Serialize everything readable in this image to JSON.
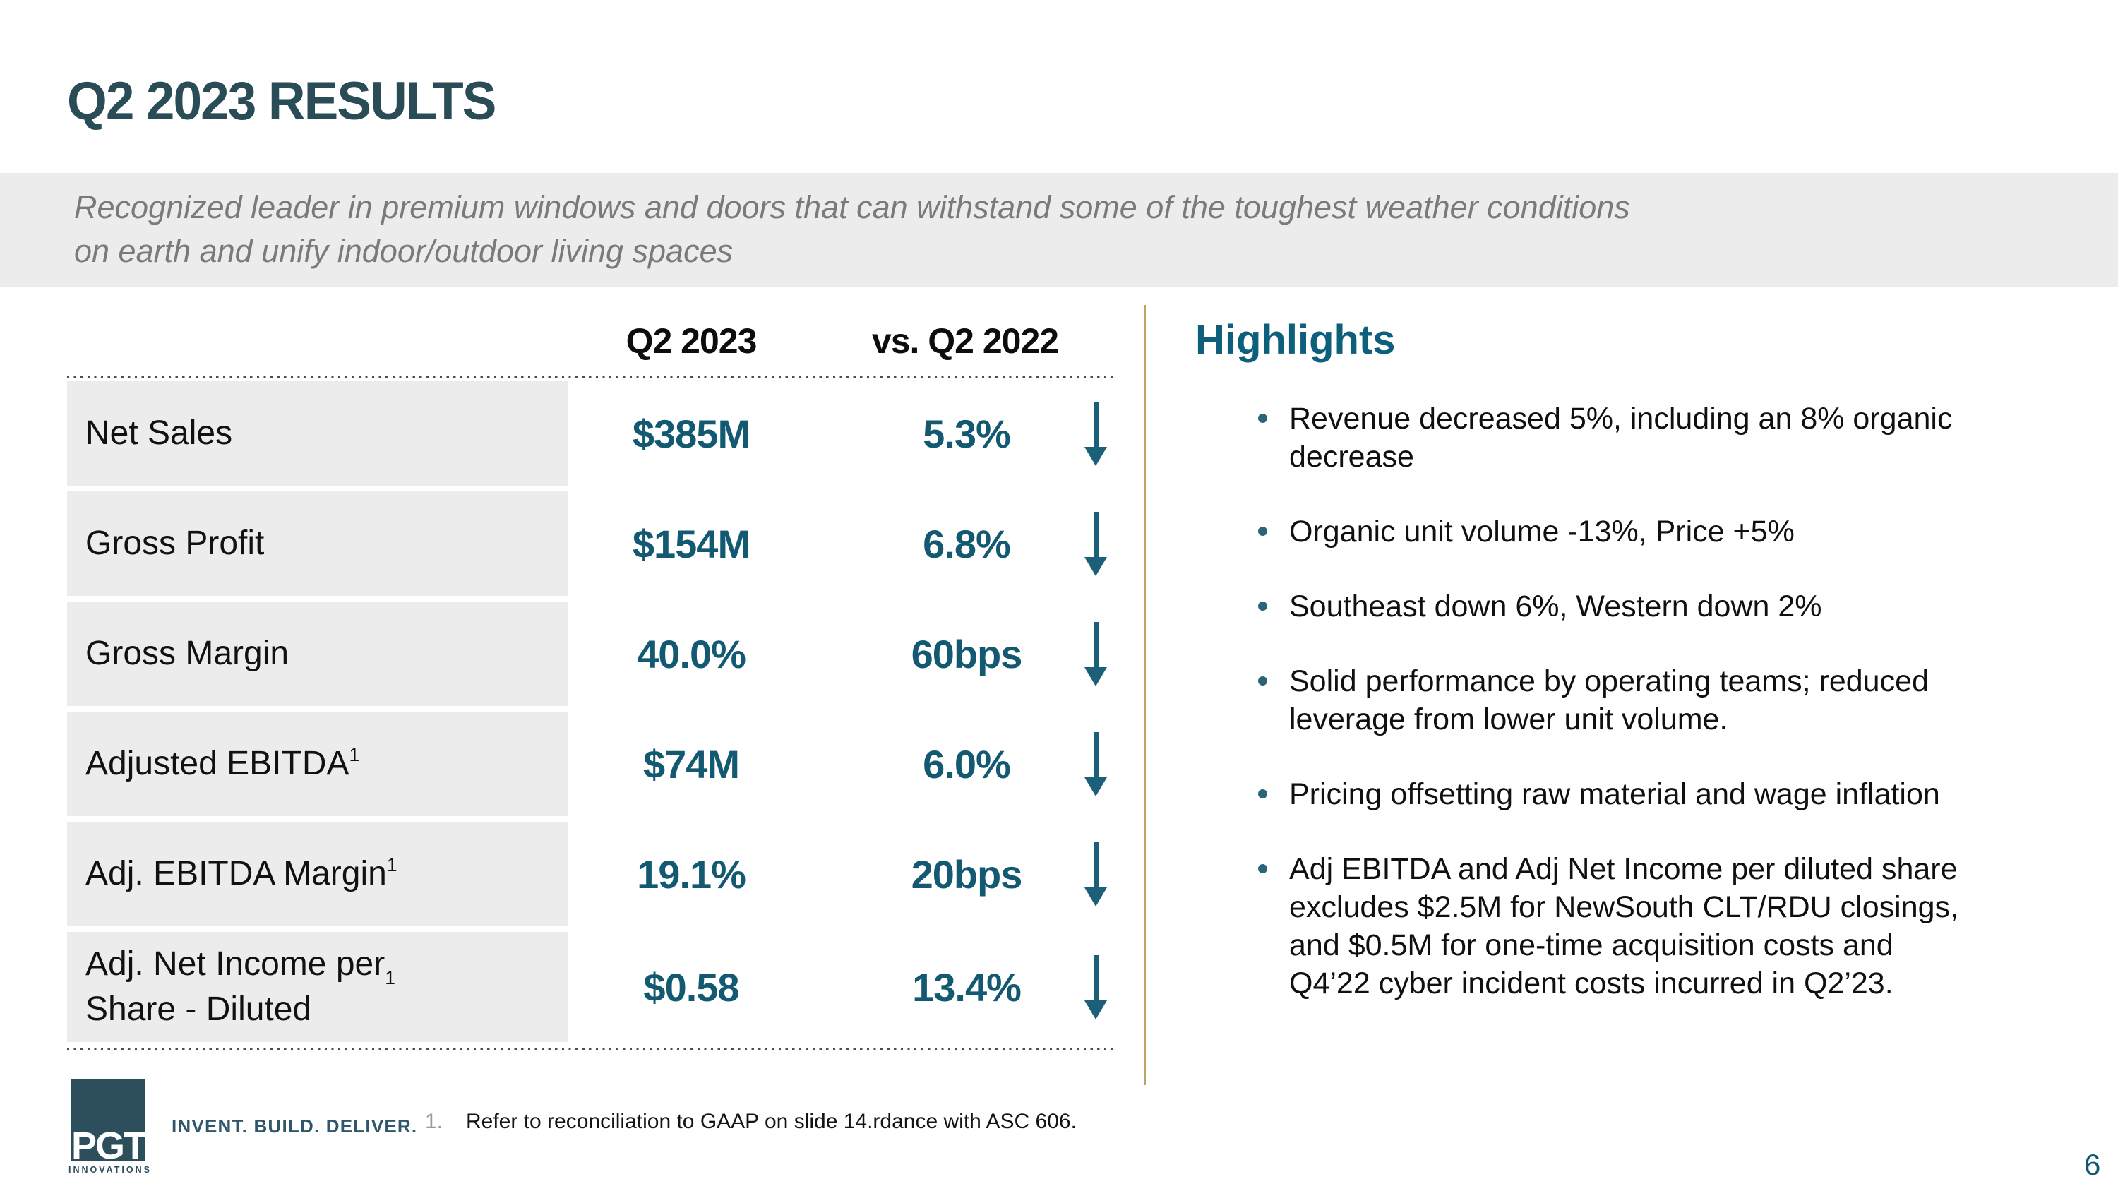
{
  "slide": {
    "title": "Q2 2023 RESULTS",
    "subtitle": "Recognized leader in premium windows and doors that can withstand some of the toughest weather conditions\non earth and unify indoor/outdoor living spaces",
    "page_number": "6"
  },
  "table": {
    "headers": {
      "col1": "Q2 2023",
      "col2": "vs. Q2 2022"
    },
    "rows": [
      {
        "label": "Net Sales",
        "sup": "",
        "q2_2023": "$385M",
        "vs": "5.3%",
        "direction": "down"
      },
      {
        "label": "Gross Profit",
        "sup": "",
        "q2_2023": "$154M",
        "vs": "6.8%",
        "direction": "down"
      },
      {
        "label": "Gross Margin",
        "sup": "",
        "q2_2023": "40.0%",
        "vs": "60bps",
        "direction": "down"
      },
      {
        "label": "Adjusted EBITDA",
        "sup": "1",
        "q2_2023": "$74M",
        "vs": "6.0%",
        "direction": "down"
      },
      {
        "label": "Adj. EBITDA Margin",
        "sup": "1",
        "q2_2023": "19.1%",
        "vs": "20bps",
        "direction": "down"
      },
      {
        "label": "Adj. Net Income per\nShare - Diluted",
        "sup": "1",
        "q2_2023": "$0.58",
        "vs": "13.4%",
        "direction": "down"
      }
    ]
  },
  "highlights": {
    "heading": "Highlights",
    "bullets": [
      "Revenue decreased 5%, including an 8% organic\ndecrease",
      "Organic unit volume -13%, Price +5%",
      "Southeast down 6%, Western down 2%",
      "Solid performance by operating teams; reduced\nleverage from lower unit volume.",
      "Pricing offsetting raw material and wage inflation",
      "Adj EBITDA and Adj Net Income per diluted share\nexcludes $2.5M for NewSouth CLT/RDU closings,\nand $0.5M for one-time acquisition costs and\nQ4’22 cyber incident costs incurred in Q2’23."
    ]
  },
  "footer": {
    "logo_brand": "PGT",
    "logo_sub": "INNOVATIONS",
    "tagline": "INVENT. BUILD. DELIVER.",
    "footnote_number": "1.",
    "footnote_text": "Refer to reconciliation to GAAP on slide 14.rdance with ASC 606."
  },
  "colors": {
    "title_teal": "#2a4c57",
    "value_teal": "#135971",
    "heading_teal": "#0d5f7b",
    "arrow_teal": "#1b6078",
    "divider_tan": "#c2a06a",
    "band_gray": "#ececec",
    "subtitle_gray": "#7a7a7a"
  }
}
